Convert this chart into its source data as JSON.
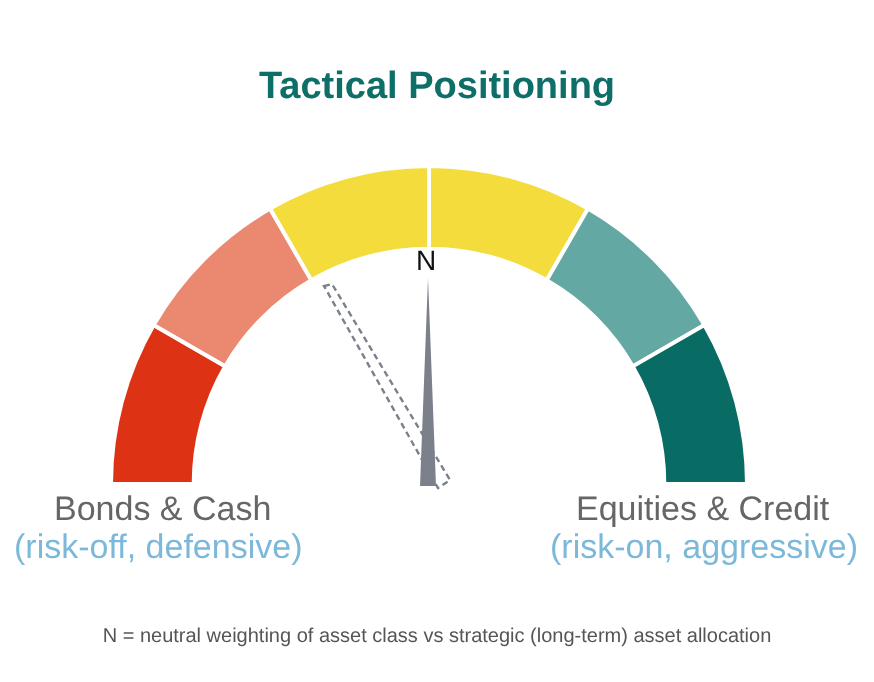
{
  "chart_data": {
    "type": "donut",
    "title": "Tactical Positioning",
    "categories": [
      null,
      null,
      null,
      null,
      null,
      null
    ],
    "values": [
      16.67,
      16.67,
      16.66,
      16.67,
      16.67,
      16.66
    ],
    "colors": [
      "#dd3214",
      "#ea8870",
      "#f3dc3c",
      "#f3dc3c",
      "#64a8a3",
      "#086b64"
    ],
    "annotations": [
      "N",
      "Bonds & Cash",
      "(risk-off, defensive)",
      "Equities & Credit",
      "(risk-on, aggressive)",
      "N = neutral weighting of asset class vs strategic (long-term) asset allocation"
    ],
    "legend": false
  }
}
